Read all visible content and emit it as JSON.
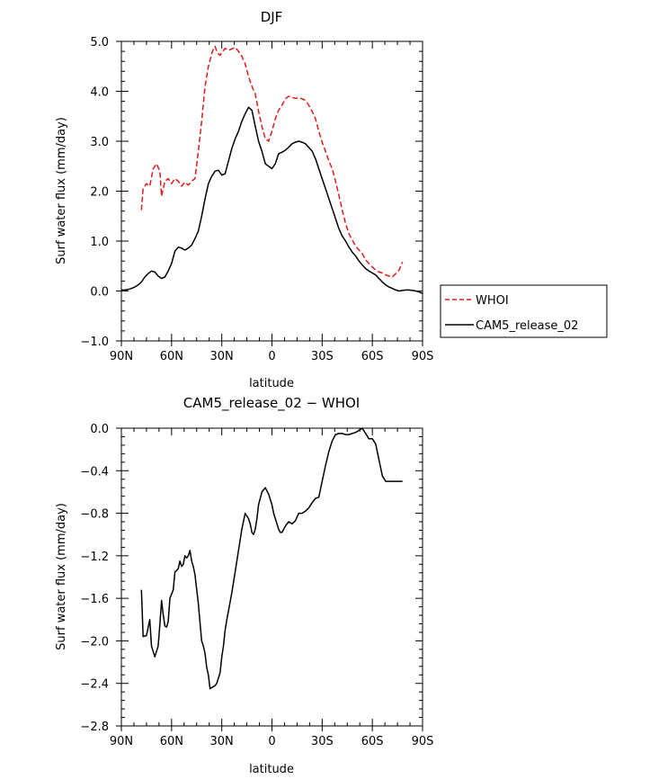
{
  "figure": {
    "legend": {
      "entries": [
        {
          "label": "WHOI",
          "color": "#e31a1c",
          "style": "dashed"
        },
        {
          "label": "CAM5_release_02",
          "color": "#000000",
          "style": "solid"
        }
      ]
    }
  },
  "chart_data": [
    {
      "type": "line",
      "title": "DJF",
      "xlabel": "latitude",
      "ylabel": "Surf water flux (mm/day)",
      "xlim": [
        90,
        -90
      ],
      "ylim": [
        -1.0,
        5.0
      ],
      "xticks": [
        90,
        60,
        30,
        0,
        -30,
        -60,
        -90
      ],
      "xtick_labels": [
        "90N",
        "60N",
        "30N",
        "0",
        "30S",
        "60S",
        "90S"
      ],
      "yticks": [
        -1,
        0,
        1,
        2,
        3,
        4,
        5
      ],
      "ytick_labels": [
        "−1.0",
        "0.0",
        "1.0",
        "2.0",
        "3.0",
        "4.0",
        "5.0"
      ],
      "legend": "right",
      "series": [
        {
          "name": "WHOI",
          "color": "#e31a1c",
          "style": "dashed",
          "x": [
            78,
            77,
            75,
            73,
            71,
            69,
            67,
            66,
            64,
            62,
            60,
            58,
            56,
            54,
            52,
            50,
            48,
            46,
            44,
            42,
            40,
            38,
            36,
            35,
            34,
            33,
            32,
            31,
            30,
            28,
            26,
            24,
            22,
            20,
            18,
            16,
            14,
            12,
            10,
            8,
            6,
            4,
            2,
            0,
            -2,
            -4,
            -6,
            -8,
            -10,
            -12,
            -14,
            -16,
            -18,
            -20,
            -22,
            -24,
            -26,
            -28,
            -30,
            -32,
            -34,
            -36,
            -38,
            -40,
            -42,
            -44,
            -46,
            -48,
            -50,
            -52,
            -54,
            -56,
            -58,
            -60,
            -62,
            -64,
            -66,
            -68,
            -70,
            -72,
            -74,
            -76,
            -78
          ],
          "y": [
            1.62,
            2.05,
            2.15,
            2.1,
            2.45,
            2.55,
            2.4,
            1.9,
            2.2,
            2.25,
            2.15,
            2.25,
            2.2,
            2.1,
            2.18,
            2.12,
            2.2,
            2.25,
            2.8,
            3.4,
            4.1,
            4.5,
            4.75,
            4.85,
            4.9,
            4.8,
            4.75,
            4.72,
            4.78,
            4.86,
            4.82,
            4.85,
            4.88,
            4.8,
            4.7,
            4.55,
            4.3,
            4.1,
            3.95,
            3.6,
            3.3,
            3.05,
            3.0,
            3.2,
            3.45,
            3.62,
            3.72,
            3.85,
            3.9,
            3.88,
            3.86,
            3.87,
            3.85,
            3.82,
            3.72,
            3.6,
            3.45,
            3.2,
            2.98,
            2.8,
            2.6,
            2.45,
            2.2,
            1.92,
            1.62,
            1.35,
            1.15,
            1.02,
            0.9,
            0.82,
            0.75,
            0.62,
            0.55,
            0.48,
            0.42,
            0.38,
            0.36,
            0.32,
            0.3,
            0.28,
            0.35,
            0.42,
            0.58
          ]
        },
        {
          "name": "CAM5_release_02",
          "color": "#000000",
          "style": "solid",
          "x": [
            90,
            88,
            86,
            84,
            82,
            80,
            78,
            76,
            74,
            72,
            70,
            68,
            66,
            64,
            62,
            60,
            58,
            56,
            54,
            52,
            50,
            48,
            46,
            44,
            42,
            40,
            38,
            36,
            34,
            32,
            30,
            28,
            26,
            24,
            22,
            20,
            18,
            16,
            14,
            12,
            10,
            8,
            6,
            4,
            2,
            0,
            -2,
            -4,
            -6,
            -8,
            -10,
            -12,
            -14,
            -16,
            -18,
            -20,
            -22,
            -24,
            -26,
            -28,
            -30,
            -32,
            -34,
            -36,
            -38,
            -40,
            -42,
            -44,
            -46,
            -48,
            -50,
            -52,
            -54,
            -56,
            -58,
            -60,
            -62,
            -64,
            -66,
            -68,
            -70,
            -72,
            -74,
            -76,
            -78,
            -80,
            -82,
            -84,
            -86,
            -88,
            -90
          ],
          "y": [
            0.02,
            0.02,
            0.03,
            0.05,
            0.08,
            0.12,
            0.18,
            0.28,
            0.35,
            0.4,
            0.38,
            0.3,
            0.25,
            0.28,
            0.4,
            0.55,
            0.8,
            0.88,
            0.86,
            0.82,
            0.86,
            0.92,
            1.05,
            1.2,
            1.5,
            1.85,
            2.15,
            2.3,
            2.4,
            2.42,
            2.32,
            2.35,
            2.6,
            2.85,
            3.05,
            3.2,
            3.4,
            3.55,
            3.68,
            3.62,
            3.3,
            3.0,
            2.8,
            2.55,
            2.5,
            2.45,
            2.55,
            2.75,
            2.78,
            2.82,
            2.88,
            2.95,
            2.98,
            3.0,
            2.98,
            2.95,
            2.88,
            2.8,
            2.65,
            2.45,
            2.25,
            2.05,
            1.85,
            1.65,
            1.45,
            1.25,
            1.1,
            1.0,
            0.88,
            0.78,
            0.7,
            0.6,
            0.52,
            0.45,
            0.4,
            0.36,
            0.32,
            0.25,
            0.18,
            0.12,
            0.08,
            0.05,
            0.02,
            0.0,
            0.01,
            0.02,
            0.02,
            0.01,
            0.0,
            -0.02,
            -0.05
          ]
        }
      ]
    },
    {
      "type": "line",
      "title": "CAM5_release_02 − WHOI",
      "xlabel": "latitude",
      "ylabel": "Surf water flux (mm/day)",
      "xlim": [
        90,
        -90
      ],
      "ylim": [
        -2.8,
        0.0
      ],
      "xticks": [
        90,
        60,
        30,
        0,
        -30,
        -60,
        -90
      ],
      "xtick_labels": [
        "90N",
        "60N",
        "30N",
        "0",
        "30S",
        "60S",
        "90S"
      ],
      "yticks": [
        0.0,
        -0.4,
        -0.8,
        -1.2,
        -1.6,
        -2.0,
        -2.4,
        -2.8
      ],
      "ytick_labels": [
        "0.0",
        "−0.4",
        "−0.8",
        "−1.2",
        "−1.6",
        "−2.0",
        "−2.4",
        "−2.8"
      ],
      "series": [
        {
          "name": "CAM5_release_02 − WHOI",
          "color": "#000000",
          "style": "solid",
          "x": [
            78,
            77,
            75,
            73,
            72,
            70,
            68,
            67,
            66,
            65,
            64,
            63,
            62,
            61,
            59,
            58,
            57,
            56,
            55,
            54,
            53,
            52,
            51,
            50,
            49,
            48,
            47,
            46,
            44,
            42,
            41,
            40,
            39,
            38,
            37,
            36,
            35,
            34,
            33,
            32,
            31,
            30,
            29,
            28,
            27,
            26,
            24,
            22,
            20,
            18,
            16,
            14,
            13,
            12,
            11,
            10,
            9,
            8,
            6,
            4,
            2,
            0,
            -1,
            -2,
            -3,
            -4,
            -5,
            -6,
            -8,
            -10,
            -12,
            -14,
            -16,
            -18,
            -20,
            -22,
            -24,
            -26,
            -28,
            -30,
            -32,
            -34,
            -36,
            -38,
            -40,
            -42,
            -44,
            -46,
            -48,
            -50,
            -52,
            -54,
            -56,
            -58,
            -60,
            -62,
            -64,
            -66,
            -68,
            -70,
            -72,
            -74,
            -76,
            -78
          ],
          "y": [
            -1.52,
            -1.96,
            -1.95,
            -1.8,
            -2.05,
            -2.15,
            -2.05,
            -1.85,
            -1.62,
            -1.75,
            -1.86,
            -1.87,
            -1.82,
            -1.6,
            -1.52,
            -1.35,
            -1.34,
            -1.32,
            -1.25,
            -1.3,
            -1.28,
            -1.2,
            -1.22,
            -1.2,
            -1.15,
            -1.25,
            -1.3,
            -1.38,
            -1.65,
            -2.0,
            -2.05,
            -2.12,
            -2.25,
            -2.32,
            -2.45,
            -2.44,
            -2.43,
            -2.42,
            -2.4,
            -2.35,
            -2.3,
            -2.15,
            -2.05,
            -1.9,
            -1.8,
            -1.72,
            -1.55,
            -1.35,
            -1.15,
            -0.95,
            -0.8,
            -0.85,
            -0.9,
            -0.98,
            -1.0,
            -0.95,
            -0.85,
            -0.72,
            -0.6,
            -0.56,
            -0.62,
            -0.72,
            -0.8,
            -0.85,
            -0.9,
            -0.95,
            -0.98,
            -0.98,
            -0.92,
            -0.88,
            -0.9,
            -0.87,
            -0.8,
            -0.8,
            -0.78,
            -0.75,
            -0.7,
            -0.66,
            -0.65,
            -0.5,
            -0.35,
            -0.22,
            -0.12,
            -0.06,
            -0.05,
            -0.05,
            -0.06,
            -0.06,
            -0.05,
            -0.04,
            -0.02,
            0.0,
            -0.05,
            -0.1,
            -0.1,
            -0.15,
            -0.3,
            -0.45,
            -0.5,
            -0.5,
            -0.5,
            -0.5,
            -0.5,
            -0.5
          ]
        }
      ]
    }
  ]
}
